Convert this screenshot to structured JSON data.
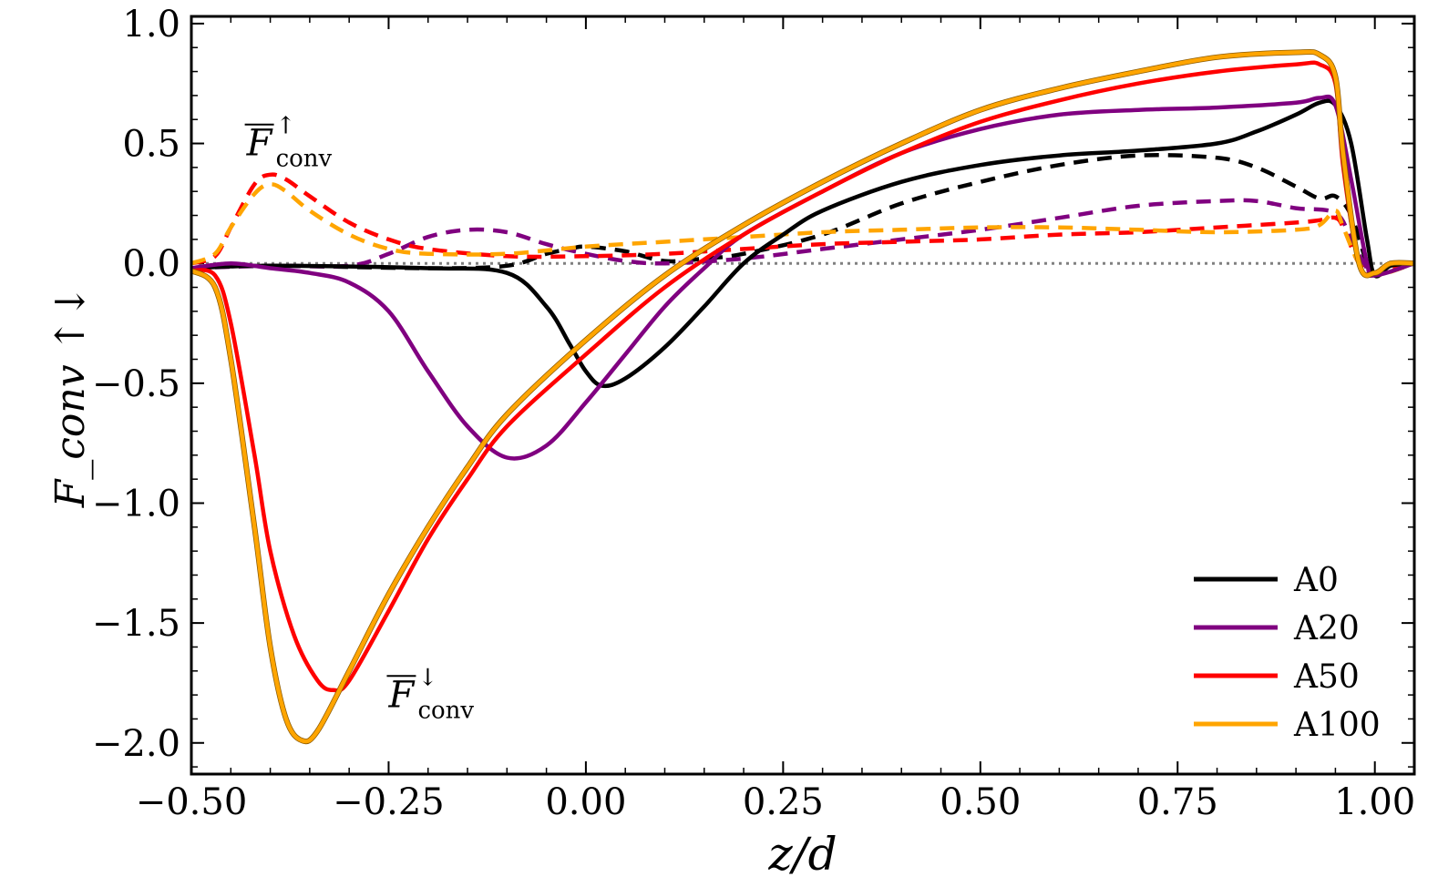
{
  "chart_data": {
    "type": "line",
    "xlabel": "z/d",
    "ylabel": "F_conv ↑↓",
    "xlim": [
      -0.5,
      1.05
    ],
    "ylim": [
      -2.13,
      1.03
    ],
    "xticks": [
      -0.5,
      -0.25,
      0.0,
      0.25,
      0.5,
      0.75,
      1.0
    ],
    "xtick_labels": [
      "−0.50",
      "−0.25",
      "0.00",
      "0.25",
      "0.50",
      "0.75",
      "1.00"
    ],
    "yticks": [
      1.0,
      0.5,
      0.0,
      -0.5,
      -1.0,
      -1.5,
      -2.0
    ],
    "ytick_labels": [
      "1.0",
      "0.5",
      "0.0",
      "−0.5",
      "−1.0",
      "−1.5",
      "−2.0"
    ],
    "reference_line": {
      "y": 0.0,
      "style": "dotted",
      "color": "#808080"
    },
    "legend": {
      "position": "lower-right",
      "entries": [
        "A0",
        "A20",
        "A50",
        "A100"
      ]
    },
    "annotations": [
      {
        "base": "F",
        "sub": "conv",
        "sup": "↑",
        "x": -0.43,
        "y": 0.45
      },
      {
        "base": "F",
        "sub": "conv",
        "sup": "↓",
        "x": -0.25,
        "y": -1.85
      }
    ],
    "series": [
      {
        "name": "A0",
        "color": "#000000",
        "kind": "down",
        "style": "solid",
        "legend": true,
        "points": [
          [
            -0.5,
            -0.02
          ],
          [
            -0.4,
            -0.01
          ],
          [
            -0.2,
            -0.02
          ],
          [
            -0.1,
            -0.04
          ],
          [
            -0.05,
            -0.18
          ],
          [
            -0.02,
            -0.34
          ],
          [
            0.0,
            -0.45
          ],
          [
            0.02,
            -0.51
          ],
          [
            0.05,
            -0.48
          ],
          [
            0.1,
            -0.35
          ],
          [
            0.15,
            -0.18
          ],
          [
            0.2,
            0.0
          ],
          [
            0.25,
            0.12
          ],
          [
            0.3,
            0.22
          ],
          [
            0.4,
            0.34
          ],
          [
            0.5,
            0.41
          ],
          [
            0.6,
            0.45
          ],
          [
            0.7,
            0.47
          ],
          [
            0.8,
            0.5
          ],
          [
            0.85,
            0.55
          ],
          [
            0.9,
            0.62
          ],
          [
            0.93,
            0.67
          ],
          [
            0.95,
            0.66
          ],
          [
            0.97,
            0.5
          ],
          [
            0.99,
            0.1
          ],
          [
            1.0,
            -0.05
          ],
          [
            1.02,
            -0.01
          ],
          [
            1.05,
            0.0
          ]
        ]
      },
      {
        "name": "A0 up",
        "color": "#000000",
        "kind": "up",
        "style": "dashed",
        "legend": false,
        "points": [
          [
            -0.5,
            -0.02
          ],
          [
            -0.4,
            -0.01
          ],
          [
            -0.2,
            -0.02
          ],
          [
            -0.1,
            -0.01
          ],
          [
            -0.05,
            0.04
          ],
          [
            -0.02,
            0.06
          ],
          [
            0.0,
            0.07
          ],
          [
            0.05,
            0.05
          ],
          [
            0.1,
            0.01
          ],
          [
            0.15,
            0.02
          ],
          [
            0.2,
            0.04
          ],
          [
            0.3,
            0.12
          ],
          [
            0.4,
            0.25
          ],
          [
            0.5,
            0.34
          ],
          [
            0.6,
            0.41
          ],
          [
            0.7,
            0.45
          ],
          [
            0.8,
            0.44
          ],
          [
            0.85,
            0.4
          ],
          [
            0.9,
            0.32
          ],
          [
            0.93,
            0.27
          ],
          [
            0.95,
            0.28
          ],
          [
            0.97,
            0.2
          ],
          [
            0.99,
            0.0
          ],
          [
            1.0,
            -0.05
          ],
          [
            1.05,
            0.0
          ]
        ]
      },
      {
        "name": "A20",
        "color": "#800080",
        "kind": "down",
        "style": "solid",
        "legend": true,
        "points": [
          [
            -0.5,
            -0.02
          ],
          [
            -0.45,
            0.0
          ],
          [
            -0.4,
            -0.02
          ],
          [
            -0.35,
            -0.04
          ],
          [
            -0.3,
            -0.08
          ],
          [
            -0.25,
            -0.2
          ],
          [
            -0.2,
            -0.45
          ],
          [
            -0.15,
            -0.68
          ],
          [
            -0.1,
            -0.81
          ],
          [
            -0.05,
            -0.76
          ],
          [
            0.0,
            -0.58
          ],
          [
            0.05,
            -0.38
          ],
          [
            0.1,
            -0.18
          ],
          [
            0.15,
            -0.02
          ],
          [
            0.2,
            0.12
          ],
          [
            0.3,
            0.3
          ],
          [
            0.4,
            0.46
          ],
          [
            0.5,
            0.56
          ],
          [
            0.6,
            0.62
          ],
          [
            0.7,
            0.64
          ],
          [
            0.8,
            0.65
          ],
          [
            0.9,
            0.67
          ],
          [
            0.93,
            0.69
          ],
          [
            0.95,
            0.66
          ],
          [
            0.97,
            0.35
          ],
          [
            0.99,
            0.0
          ],
          [
            1.0,
            -0.05
          ],
          [
            1.05,
            0.0
          ]
        ]
      },
      {
        "name": "A20 up",
        "color": "#800080",
        "kind": "up",
        "style": "dashed",
        "legend": false,
        "points": [
          [
            -0.5,
            -0.02
          ],
          [
            -0.4,
            -0.01
          ],
          [
            -0.3,
            -0.01
          ],
          [
            -0.25,
            0.04
          ],
          [
            -0.2,
            0.11
          ],
          [
            -0.15,
            0.14
          ],
          [
            -0.1,
            0.13
          ],
          [
            -0.05,
            0.08
          ],
          [
            0.0,
            0.04
          ],
          [
            0.05,
            0.01
          ],
          [
            0.1,
            0.0
          ],
          [
            0.2,
            0.02
          ],
          [
            0.3,
            0.06
          ],
          [
            0.4,
            0.1
          ],
          [
            0.5,
            0.14
          ],
          [
            0.6,
            0.19
          ],
          [
            0.7,
            0.24
          ],
          [
            0.8,
            0.26
          ],
          [
            0.85,
            0.26
          ],
          [
            0.9,
            0.23
          ],
          [
            0.95,
            0.21
          ],
          [
            0.97,
            0.1
          ],
          [
            0.99,
            -0.02
          ],
          [
            1.0,
            -0.04
          ],
          [
            1.05,
            0.0
          ]
        ]
      },
      {
        "name": "A50",
        "color": "#ff0000",
        "kind": "down",
        "style": "solid",
        "legend": true,
        "points": [
          [
            -0.5,
            -0.03
          ],
          [
            -0.47,
            -0.05
          ],
          [
            -0.45,
            -0.25
          ],
          [
            -0.42,
            -0.8
          ],
          [
            -0.4,
            -1.2
          ],
          [
            -0.37,
            -1.55
          ],
          [
            -0.34,
            -1.74
          ],
          [
            -0.32,
            -1.78
          ],
          [
            -0.3,
            -1.74
          ],
          [
            -0.25,
            -1.45
          ],
          [
            -0.2,
            -1.15
          ],
          [
            -0.15,
            -0.9
          ],
          [
            -0.1,
            -0.68
          ],
          [
            0.0,
            -0.38
          ],
          [
            0.1,
            -0.1
          ],
          [
            0.2,
            0.12
          ],
          [
            0.3,
            0.3
          ],
          [
            0.4,
            0.46
          ],
          [
            0.5,
            0.59
          ],
          [
            0.6,
            0.68
          ],
          [
            0.7,
            0.75
          ],
          [
            0.8,
            0.8
          ],
          [
            0.9,
            0.83
          ],
          [
            0.93,
            0.83
          ],
          [
            0.95,
            0.75
          ],
          [
            0.96,
            0.4
          ],
          [
            0.98,
            0.0
          ],
          [
            1.0,
            -0.04
          ],
          [
            1.02,
            0.0
          ],
          [
            1.05,
            0.0
          ]
        ]
      },
      {
        "name": "A50 up",
        "color": "#ff0000",
        "kind": "up",
        "style": "dashed",
        "legend": false,
        "points": [
          [
            -0.5,
            0.0
          ],
          [
            -0.47,
            0.03
          ],
          [
            -0.45,
            0.15
          ],
          [
            -0.42,
            0.33
          ],
          [
            -0.4,
            0.37
          ],
          [
            -0.38,
            0.35
          ],
          [
            -0.35,
            0.28
          ],
          [
            -0.3,
            0.17
          ],
          [
            -0.25,
            0.1
          ],
          [
            -0.2,
            0.06
          ],
          [
            -0.1,
            0.03
          ],
          [
            0.0,
            0.03
          ],
          [
            0.1,
            0.04
          ],
          [
            0.2,
            0.06
          ],
          [
            0.3,
            0.08
          ],
          [
            0.4,
            0.09
          ],
          [
            0.5,
            0.1
          ],
          [
            0.6,
            0.12
          ],
          [
            0.7,
            0.13
          ],
          [
            0.8,
            0.15
          ],
          [
            0.9,
            0.17
          ],
          [
            0.93,
            0.18
          ],
          [
            0.95,
            0.19
          ],
          [
            0.96,
            0.15
          ],
          [
            0.98,
            0.0
          ],
          [
            1.0,
            -0.04
          ],
          [
            1.05,
            0.0
          ]
        ]
      },
      {
        "name": "A100",
        "color": "#ffa500",
        "kind": "down",
        "style": "solid",
        "legend": true,
        "points": [
          [
            -0.5,
            -0.03
          ],
          [
            -0.47,
            -0.1
          ],
          [
            -0.45,
            -0.4
          ],
          [
            -0.42,
            -1.1
          ],
          [
            -0.4,
            -1.6
          ],
          [
            -0.38,
            -1.9
          ],
          [
            -0.36,
            -1.99
          ],
          [
            -0.34,
            -1.95
          ],
          [
            -0.3,
            -1.7
          ],
          [
            -0.25,
            -1.38
          ],
          [
            -0.2,
            -1.1
          ],
          [
            -0.15,
            -0.85
          ],
          [
            -0.1,
            -0.63
          ],
          [
            0.0,
            -0.32
          ],
          [
            0.1,
            -0.05
          ],
          [
            0.2,
            0.16
          ],
          [
            0.3,
            0.34
          ],
          [
            0.4,
            0.5
          ],
          [
            0.5,
            0.64
          ],
          [
            0.6,
            0.73
          ],
          [
            0.7,
            0.8
          ],
          [
            0.8,
            0.86
          ],
          [
            0.9,
            0.88
          ],
          [
            0.93,
            0.87
          ],
          [
            0.95,
            0.78
          ],
          [
            0.96,
            0.45
          ],
          [
            0.98,
            0.0
          ],
          [
            1.0,
            -0.04
          ],
          [
            1.02,
            0.0
          ],
          [
            1.05,
            0.0
          ]
        ]
      },
      {
        "name": "A100 up",
        "color": "#ffa500",
        "kind": "up",
        "style": "dashed",
        "legend": false,
        "points": [
          [
            -0.5,
            0.0
          ],
          [
            -0.47,
            0.04
          ],
          [
            -0.45,
            0.15
          ],
          [
            -0.42,
            0.29
          ],
          [
            -0.4,
            0.33
          ],
          [
            -0.38,
            0.3
          ],
          [
            -0.35,
            0.22
          ],
          [
            -0.3,
            0.12
          ],
          [
            -0.25,
            0.06
          ],
          [
            -0.2,
            0.04
          ],
          [
            -0.1,
            0.04
          ],
          [
            0.0,
            0.07
          ],
          [
            0.1,
            0.09
          ],
          [
            0.2,
            0.11
          ],
          [
            0.3,
            0.13
          ],
          [
            0.4,
            0.14
          ],
          [
            0.5,
            0.15
          ],
          [
            0.6,
            0.15
          ],
          [
            0.7,
            0.14
          ],
          [
            0.8,
            0.13
          ],
          [
            0.9,
            0.14
          ],
          [
            0.93,
            0.16
          ],
          [
            0.95,
            0.22
          ],
          [
            0.96,
            0.15
          ],
          [
            0.98,
            0.0
          ],
          [
            1.0,
            -0.05
          ],
          [
            1.05,
            0.0
          ]
        ]
      }
    ]
  }
}
